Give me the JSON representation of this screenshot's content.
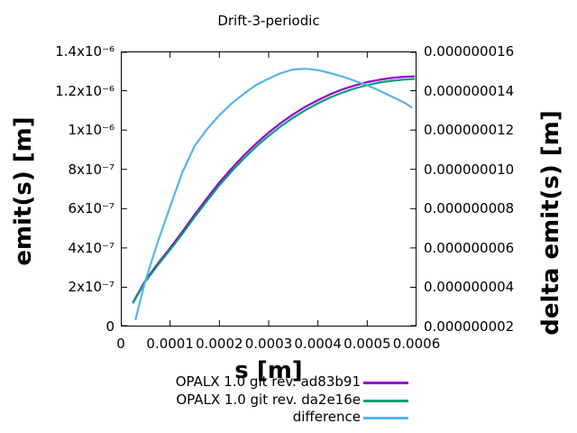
{
  "chart_data": {
    "type": "line",
    "title": "Drift-3-periodic",
    "xlabel": "s [m]",
    "ylabel": "emit(s) [m]",
    "y2label": "delta emit(s) [m]",
    "xlim": [
      0,
      0.0006
    ],
    "ylim": [
      0,
      1.4e-06
    ],
    "y2lim": [
      2e-09,
      1.6e-08
    ],
    "grid": false,
    "legend_position": "below-right",
    "x_tick_values": [
      0,
      0.0001,
      0.0002,
      0.0003,
      0.0004,
      0.0005,
      0.0006
    ],
    "x_tick_labels": [
      "0",
      "0.0001",
      "0.0002",
      "0.0003",
      "0.0004",
      "0.0005",
      "0.0006"
    ],
    "y1_tick_labels_bottom_to_top": [
      "0",
      "2x10⁻⁷",
      "4x10⁻⁷",
      "6x10⁻⁷",
      "8x10⁻⁷",
      "1x10⁻⁶",
      "1.2x10⁻⁶",
      "1.4x10⁻⁶"
    ],
    "y2_tick_labels_bottom_to_top": [
      "0.000000002",
      "0.000000004",
      "0.000000006",
      "0.000000008",
      "0.000000010",
      "0.000000012",
      "0.000000014",
      "0.000000016"
    ],
    "series": [
      {
        "name": "OPALX 1.0 git rev. ad83b91",
        "color": "#9400d3",
        "axis": "y1",
        "x": [
          2.5e-05,
          5e-05,
          7.5e-05,
          0.0001,
          0.000125,
          0.00015,
          0.000175,
          0.0002,
          0.000225,
          0.00025,
          0.000275,
          0.0003,
          0.000325,
          0.00035,
          0.000375,
          0.0004,
          0.000425,
          0.00045,
          0.000475,
          0.0005,
          0.000525,
          0.00055,
          0.000575,
          0.000595
        ],
        "y": [
          1.25e-07,
          2.35e-07,
          3.2e-07,
          4e-07,
          4.83e-07,
          5.7e-07,
          6.53e-07,
          7.33e-07,
          8.05e-07,
          8.72e-07,
          9.32e-07,
          9.87e-07,
          1.037e-06,
          1.08e-06,
          1.119e-06,
          1.152e-06,
          1.182e-06,
          1.207e-06,
          1.227e-06,
          1.244e-06,
          1.256e-06,
          1.265e-06,
          1.271e-06,
          1.273e-06
        ]
      },
      {
        "name": "OPALX 1.0 git rev. da2e16e",
        "color": "#009e73",
        "axis": "y1",
        "x": [
          2.5e-05,
          5e-05,
          7.5e-05,
          0.0001,
          0.000125,
          0.00015,
          0.000175,
          0.0002,
          0.000225,
          0.00025,
          0.000275,
          0.0003,
          0.000325,
          0.00035,
          0.000375,
          0.0004,
          0.000425,
          0.00045,
          0.000475,
          0.0005,
          0.000525,
          0.00055,
          0.000575,
          0.000595
        ],
        "y": [
          1.22e-07,
          2.29e-07,
          3.12e-07,
          3.91e-07,
          4.72e-07,
          5.58e-07,
          6.4e-07,
          7.19e-07,
          7.9e-07,
          8.56e-07,
          9.16e-07,
          9.7e-07,
          1.02e-06,
          1.063e-06,
          1.102e-06,
          1.136e-06,
          1.166e-06,
          1.191e-06,
          1.212e-06,
          1.229e-06,
          1.242e-06,
          1.251e-06,
          1.257e-06,
          1.26e-06
        ]
      },
      {
        "name": "difference",
        "color": "#56b4e9",
        "axis": "y2",
        "x": [
          3e-05,
          5e-05,
          7.5e-05,
          0.0001,
          0.000125,
          0.00015,
          0.000175,
          0.0002,
          0.000225,
          0.00025,
          0.000275,
          0.0003,
          0.000325,
          0.00035,
          0.000375,
          0.0004,
          0.000425,
          0.00045,
          0.000475,
          0.0005,
          0.000525,
          0.00055,
          0.000575,
          0.00059
        ],
        "y": [
          2.37e-09,
          4.34e-09,
          6.3e-09,
          8.1e-09,
          9.85e-09,
          1.12e-08,
          1.205e-08,
          1.275e-08,
          1.335e-08,
          1.385e-08,
          1.43e-08,
          1.462e-08,
          1.49e-08,
          1.508e-08,
          1.512e-08,
          1.505e-08,
          1.49e-08,
          1.472e-08,
          1.45e-08,
          1.428e-08,
          1.4e-08,
          1.37e-08,
          1.34e-08,
          1.316e-08
        ]
      }
    ]
  }
}
